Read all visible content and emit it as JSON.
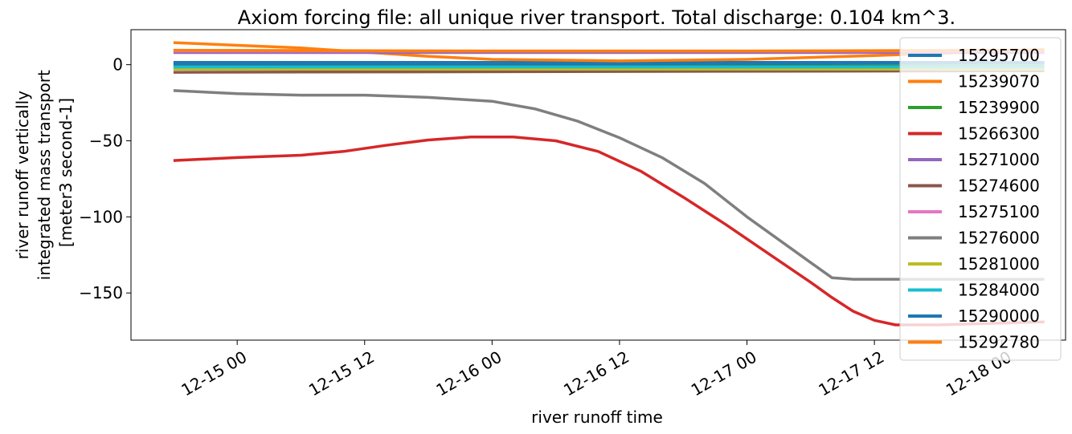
{
  "chart_data": {
    "type": "line",
    "title": "Axiom forcing file: all unique river transport. Total discharge: 0.104 km^3.",
    "xlabel": "river runoff time",
    "ylabel_lines": [
      "river runoff vertically",
      "integrated mass transport",
      "[meter3 second-1]"
    ],
    "x_range": [
      "12-14 14:00",
      "12-18 06:00"
    ],
    "ylim": [
      -181,
      23
    ],
    "x_ticks": [
      {
        "label": "12-15 00",
        "t": "12-15 00:00"
      },
      {
        "label": "12-15 12",
        "t": "12-15 12:00"
      },
      {
        "label": "12-16 00",
        "t": "12-16 00:00"
      },
      {
        "label": "12-16 12",
        "t": "12-16 12:00"
      },
      {
        "label": "12-17 00",
        "t": "12-17 00:00"
      },
      {
        "label": "12-17 12",
        "t": "12-17 12:00"
      },
      {
        "label": "12-18 00",
        "t": "12-18 00:00"
      }
    ],
    "y_ticks": [
      {
        "label": "0",
        "v": 0
      },
      {
        "label": "−50",
        "v": -50
      },
      {
        "label": "−100",
        "v": -100
      },
      {
        "label": "−150",
        "v": -150
      }
    ],
    "legend_position": "right",
    "series": [
      {
        "name": "15295700",
        "color": "#1f77b4",
        "points": [
          [
            "12-14 18:00",
            1.5
          ],
          [
            "12-16 00:00",
            1.5
          ],
          [
            "12-17 00:00",
            1.5
          ],
          [
            "12-18 04:00",
            1.5
          ]
        ]
      },
      {
        "name": "15239070",
        "color": "#ff7f0e",
        "points": [
          [
            "12-14 18:00",
            14.5
          ],
          [
            "12-15 06:00",
            11
          ],
          [
            "12-15 18:00",
            5.5
          ],
          [
            "12-16 00:00",
            3.5
          ],
          [
            "12-16 12:00",
            2.5
          ],
          [
            "12-17 00:00",
            3.5
          ],
          [
            "12-17 12:00",
            6
          ],
          [
            "12-18 04:00",
            10
          ]
        ]
      },
      {
        "name": "15239900",
        "color": "#2ca02c",
        "points": [
          [
            "12-14 18:00",
            -1
          ],
          [
            "12-18 04:00",
            -1
          ]
        ]
      },
      {
        "name": "15266300",
        "color": "#d62728",
        "points": [
          [
            "12-14 18:00",
            -63
          ],
          [
            "12-15 00:00",
            -61
          ],
          [
            "12-15 06:00",
            -59.5
          ],
          [
            "12-15 10:00",
            -57
          ],
          [
            "12-15 14:00",
            -53
          ],
          [
            "12-15 18:00",
            -49.5
          ],
          [
            "12-15 22:00",
            -47.5
          ],
          [
            "12-16 02:00",
            -47.5
          ],
          [
            "12-16 06:00",
            -50
          ],
          [
            "12-16 10:00",
            -57
          ],
          [
            "12-16 14:00",
            -70
          ],
          [
            "12-16 18:00",
            -87
          ],
          [
            "12-16 22:00",
            -105
          ],
          [
            "12-17 02:00",
            -124
          ],
          [
            "12-17 06:00",
            -143
          ],
          [
            "12-17 08:00",
            -153
          ],
          [
            "12-17 10:00",
            -162
          ],
          [
            "12-17 12:00",
            -168
          ],
          [
            "12-17 14:00",
            -171
          ],
          [
            "12-17 18:00",
            -171
          ],
          [
            "12-18 04:00",
            -169
          ]
        ]
      },
      {
        "name": "15271000",
        "color": "#9467bd",
        "points": [
          [
            "12-14 18:00",
            8
          ],
          [
            "12-18 04:00",
            8
          ]
        ]
      },
      {
        "name": "15274600",
        "color": "#8c564b",
        "points": [
          [
            "12-14 18:00",
            -5
          ],
          [
            "12-18 04:00",
            -4
          ]
        ]
      },
      {
        "name": "15275100",
        "color": "#e377c2",
        "points": [
          [
            "12-14 18:00",
            9
          ],
          [
            "12-18 04:00",
            9
          ]
        ]
      },
      {
        "name": "15276000",
        "color": "#7f7f7f",
        "points": [
          [
            "12-14 18:00",
            -17
          ],
          [
            "12-15 00:00",
            -19
          ],
          [
            "12-15 06:00",
            -20
          ],
          [
            "12-15 12:00",
            -20
          ],
          [
            "12-15 18:00",
            -21.5
          ],
          [
            "12-16 00:00",
            -24
          ],
          [
            "12-16 04:00",
            -29
          ],
          [
            "12-16 08:00",
            -37
          ],
          [
            "12-16 12:00",
            -48
          ],
          [
            "12-16 16:00",
            -61
          ],
          [
            "12-16 20:00",
            -78
          ],
          [
            "12-17 00:00",
            -100
          ],
          [
            "12-17 04:00",
            -120
          ],
          [
            "12-17 06:00",
            -130
          ],
          [
            "12-17 08:00",
            -140
          ],
          [
            "12-17 10:00",
            -141
          ],
          [
            "12-18 04:00",
            -141
          ]
        ]
      },
      {
        "name": "15281000",
        "color": "#bcbd22",
        "points": [
          [
            "12-14 18:00",
            -3
          ],
          [
            "12-18 04:00",
            -3
          ]
        ]
      },
      {
        "name": "15284000",
        "color": "#17becf",
        "points": [
          [
            "12-14 18:00",
            -1.5
          ],
          [
            "12-18 04:00",
            -1.5
          ]
        ]
      },
      {
        "name": "15290000",
        "color": "#1f77b4",
        "points": [
          [
            "12-14 18:00",
            0.5
          ],
          [
            "12-16 12:00",
            0.5
          ],
          [
            "12-18 04:00",
            1
          ]
        ]
      },
      {
        "name": "15292780",
        "color": "#ff7f0e",
        "points": [
          [
            "12-14 18:00",
            9.5
          ],
          [
            "12-16 00:00",
            9
          ],
          [
            "12-17 00:00",
            9
          ],
          [
            "12-18 04:00",
            9.5
          ]
        ]
      }
    ]
  }
}
